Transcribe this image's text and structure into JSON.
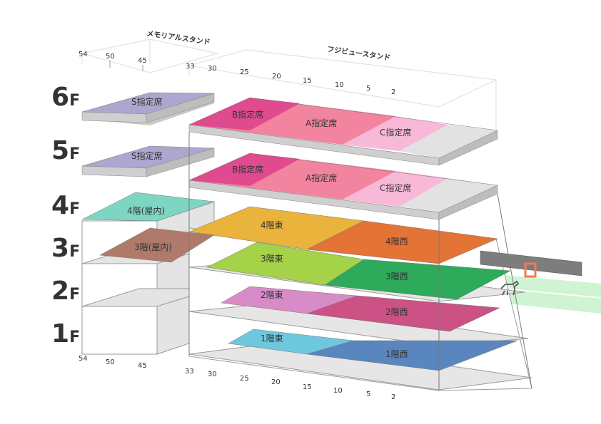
{
  "stands": {
    "memorial": "メモリアルスタンド",
    "fuji": "フジビュースタンド"
  },
  "floors": [
    {
      "num": "6",
      "unit": "F"
    },
    {
      "num": "5",
      "unit": "F"
    },
    {
      "num": "4",
      "unit": "F"
    },
    {
      "num": "3",
      "unit": "F"
    },
    {
      "num": "2",
      "unit": "F"
    },
    {
      "num": "1",
      "unit": "F"
    }
  ],
  "memorial_ticks": [
    "54",
    "50",
    "45"
  ],
  "fuji_ticks": [
    "33",
    "30",
    "25",
    "20",
    "15",
    "10",
    "5",
    "2"
  ],
  "zones": {
    "s6": "S指定席",
    "s5": "S指定席",
    "b6": "B指定席",
    "a6": "A指定席",
    "c6": "C指定席",
    "b5": "B指定席",
    "a5": "A指定席",
    "c5": "C指定席",
    "f4_in": "4階(屋内)",
    "f3_in": "3階(屋内)",
    "f4_e": "4階東",
    "f4_w": "4階西",
    "f3_e": "3階東",
    "f3_w": "3階西",
    "f2_e": "2階東",
    "f2_w": "2階西",
    "f1_e": "1階東",
    "f1_w": "1階西"
  },
  "colors": {
    "s_seat": "#ADA6CE",
    "b_seat": "#E04A8E",
    "a_seat": "#F2849F",
    "c_seat": "#F8B9D8",
    "grey_slab": "#E2E2E2",
    "f4_indoor": "#7ED6C2",
    "f3_indoor": "#B07A6A",
    "f4_east": "#E9B33C",
    "f4_west": "#E47336",
    "f3_east": "#A4D248",
    "f3_west": "#2DAA5A",
    "f2_east": "#D78CC7",
    "f2_west": "#CC5285",
    "f1_east": "#6DC8DE",
    "f1_west": "#5A86BF",
    "track": "#BFF0C4"
  }
}
